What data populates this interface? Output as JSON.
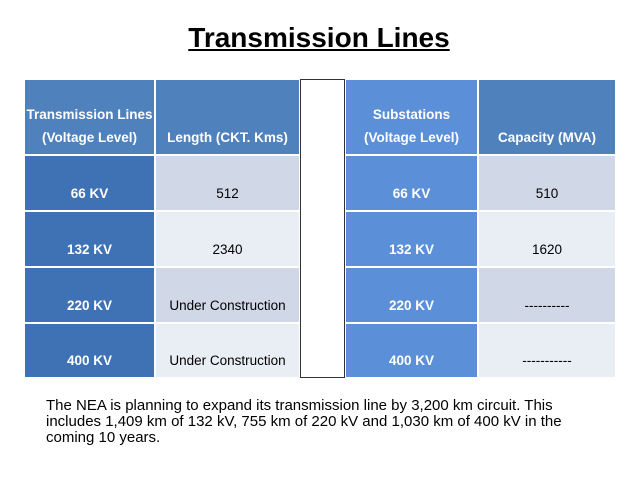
{
  "title": "Transmission Lines",
  "table": {
    "header": [
      [
        "Transmission Lines",
        "(Voltage Level)"
      ],
      [
        "Length (CKT. Kms)"
      ],
      [
        "Substations",
        "(Voltage Level)"
      ],
      [
        "Capacity (MVA)"
      ]
    ],
    "rows": [
      [
        "66 KV",
        "512",
        "66 KV",
        "510"
      ],
      [
        "132 KV",
        "2340",
        "132 KV",
        "1620"
      ],
      [
        "220 KV",
        "Under Construction",
        "220 KV",
        "----------"
      ],
      [
        "400 KV",
        "Under Construction",
        "400 KV",
        "-----------"
      ]
    ]
  },
  "note": "The NEA is planning to expand its transmission line by 3,200 km circuit. This includes 1,409 km of 132 kV, 755 km of 220 kV and 1,030 km of 400 kV in the coming 10 years."
}
